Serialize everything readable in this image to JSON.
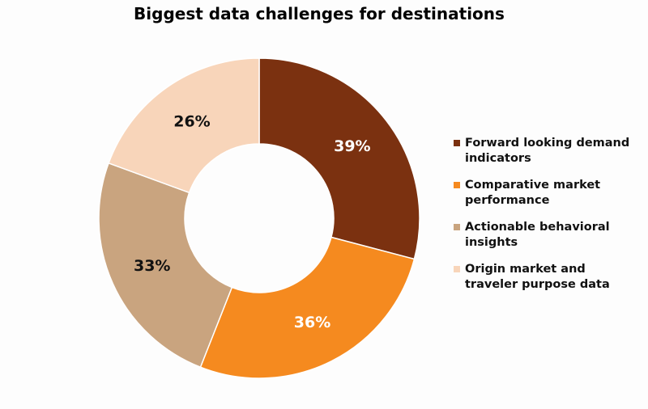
{
  "chart_data": {
    "type": "donut",
    "title": "Biggest data challenges for destinations",
    "categories": [
      "Forward looking demand indicators",
      "Comparative market performance",
      "Actionable behavioral insights",
      "Origin market and traveler purpose data"
    ],
    "values": [
      39,
      36,
      33,
      26
    ],
    "value_labels": [
      "39%",
      "36%",
      "33%",
      "26%"
    ],
    "colors": [
      "#7b3110",
      "#f58a1f",
      "#c9a47f",
      "#f8d5ba"
    ],
    "label_colors": [
      "#ffffff",
      "#ffffff",
      "#111111",
      "#111111"
    ],
    "legend": "right"
  }
}
